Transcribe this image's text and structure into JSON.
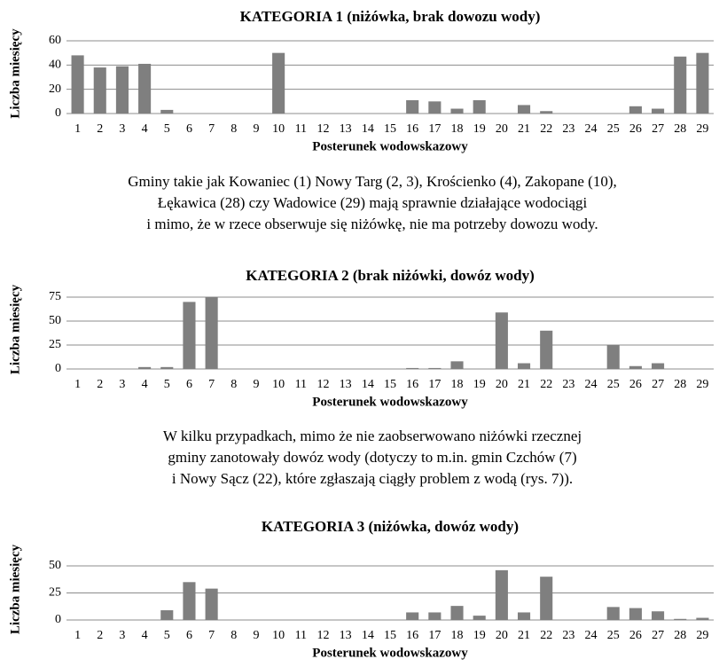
{
  "chart_data": [
    {
      "type": "bar",
      "title": "KATEGORIA 1 (niżówka, brak dowozu wody)",
      "xlabel": "Posterunek wodowskazowy",
      "ylabel": "Liczba miesięcy",
      "categories": [
        "1",
        "2",
        "3",
        "4",
        "5",
        "6",
        "7",
        "8",
        "9",
        "10",
        "11",
        "12",
        "13",
        "14",
        "15",
        "16",
        "17",
        "18",
        "19",
        "20",
        "21",
        "22",
        "23",
        "24",
        "25",
        "26",
        "27",
        "28",
        "29"
      ],
      "values": [
        48,
        38,
        39,
        41,
        3,
        0,
        0,
        0,
        0,
        50,
        0,
        0,
        0,
        0,
        0,
        11,
        10,
        4,
        11,
        0,
        7,
        2,
        0,
        0,
        0,
        6,
        4,
        47,
        50
      ],
      "color": "#7f7f7f",
      "ylim": [
        0,
        60
      ],
      "yticks": [
        0,
        20,
        40,
        60
      ],
      "grid": true,
      "caption": [
        "Gminy takie jak Kowaniec (1) Nowy Targ (2, 3), Krościenko (4), Zakopane (10),",
        "Łękawica (28) czy Wadowice (29) mają sprawnie działające wodociągi",
        "i mimo, że w rzece obserwuje się niżówkę, nie ma potrzeby dowozu wody."
      ]
    },
    {
      "type": "bar",
      "title": "KATEGORIA 2 (brak niżówki, dowóz wody)",
      "xlabel": "Posterunek wodowskazowy",
      "ylabel": "Liczba miesięcy",
      "categories": [
        "1",
        "2",
        "3",
        "4",
        "5",
        "6",
        "7",
        "8",
        "9",
        "10",
        "11",
        "12",
        "13",
        "14",
        "15",
        "16",
        "17",
        "18",
        "19",
        "20",
        "21",
        "22",
        "23",
        "24",
        "25",
        "26",
        "27",
        "28",
        "29"
      ],
      "values": [
        0,
        0,
        0,
        2,
        2,
        70,
        75,
        0,
        0,
        0,
        0,
        0,
        0,
        0,
        0,
        1,
        1,
        8,
        0,
        59,
        6,
        40,
        0,
        0,
        25,
        3,
        6,
        0,
        0
      ],
      "color": "#7f7f7f",
      "ylim": [
        0,
        75
      ],
      "yticks": [
        0,
        25,
        50,
        75
      ],
      "grid": true,
      "caption": [
        "W kilku przypadkach, mimo że nie zaobserwowano niżówki rzecznej",
        "gminy zanotowały dowóz wody (dotyczy to m.in. gmin Czchów (7)",
        "i Nowy Sącz (22), które zgłaszają ciągły problem z wodą (rys. 7))."
      ]
    },
    {
      "type": "bar",
      "title": "KATEGORIA 3 (niżówka, dowóz wody)",
      "xlabel": "Posterunek wodowskazowy",
      "ylabel": "Liczba miesięcy",
      "categories": [
        "1",
        "2",
        "3",
        "4",
        "5",
        "6",
        "7",
        "8",
        "9",
        "10",
        "11",
        "12",
        "13",
        "14",
        "15",
        "16",
        "17",
        "18",
        "19",
        "20",
        "21",
        "22",
        "23",
        "24",
        "25",
        "26",
        "27",
        "28",
        "29"
      ],
      "values": [
        0,
        0,
        0,
        0,
        9,
        35,
        29,
        0,
        0,
        0,
        0,
        0,
        0,
        0,
        0,
        7,
        7,
        13,
        4,
        46,
        7,
        40,
        0,
        0,
        12,
        11,
        8,
        1,
        2
      ],
      "color": "#7f7f7f",
      "ylim": [
        0,
        50
      ],
      "yticks": [
        0,
        25,
        50
      ],
      "grid": true
    }
  ]
}
